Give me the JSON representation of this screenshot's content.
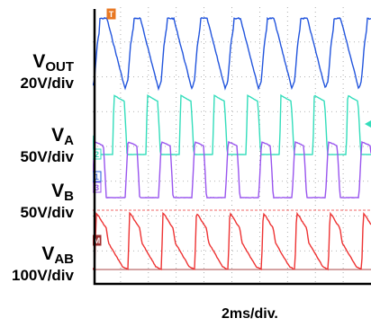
{
  "chart_data": {
    "type": "line",
    "title": "",
    "x_unit_label": "2ms/div.",
    "grid": true,
    "channels": [
      {
        "name": "VOUT",
        "name_main": "V",
        "name_sub": "OUT",
        "scale_label": "20V/div",
        "color": "#2255dd",
        "marker": "T",
        "marker_color": "#e87722",
        "waveform": [
          [
            0,
            0.95
          ],
          [
            0.25,
            0.95
          ],
          [
            0.55,
            0.55
          ],
          [
            0.9,
            0.08
          ],
          [
            1.0,
            0.18
          ],
          [
            1.1,
            0.62
          ],
          [
            1.25,
            0.95
          ]
        ]
      },
      {
        "name": "VA",
        "name_main": "V",
        "name_sub": "A",
        "scale_label": "50V/div",
        "color": "#33ddbb",
        "marker": "2",
        "marker_color": "#33ddbb",
        "waveform": [
          [
            0,
            0
          ],
          [
            0.05,
            1
          ],
          [
            0.15,
            0.97
          ],
          [
            0.3,
            0.93
          ],
          [
            0.42,
            0.9
          ],
          [
            0.48,
            0.4
          ],
          [
            0.52,
            0
          ],
          [
            1.2,
            0
          ]
        ]
      },
      {
        "name": "VB",
        "name_main": "V",
        "name_sub": "B",
        "scale_label": "50V/div",
        "color": "#9955ee",
        "marker": "3",
        "marker_color": "#9955ee",
        "waveform": [
          [
            0,
            0.97
          ],
          [
            0.2,
            0.93
          ],
          [
            0.32,
            0.9
          ],
          [
            0.38,
            0.4
          ],
          [
            0.42,
            0
          ],
          [
            1.1,
            0
          ],
          [
            1.2,
            0.97
          ]
        ]
      },
      {
        "name": "VAB",
        "name_main": "V",
        "name_sub": "AB",
        "scale_label": "100V/div",
        "color": "#ee3333",
        "marker": "M",
        "marker_color": "#a03030",
        "waveform": [
          [
            0,
            0
          ],
          [
            0.06,
            0.95
          ],
          [
            0.15,
            0.9
          ],
          [
            0.3,
            0.78
          ],
          [
            0.42,
            0.7
          ],
          [
            0.5,
            0.45
          ],
          [
            0.75,
            0.25
          ],
          [
            1.0,
            0.05
          ],
          [
            1.2,
            0
          ]
        ]
      }
    ],
    "period_divisions": 1.2,
    "divisions_x": 10,
    "divisions_y": 8
  }
}
